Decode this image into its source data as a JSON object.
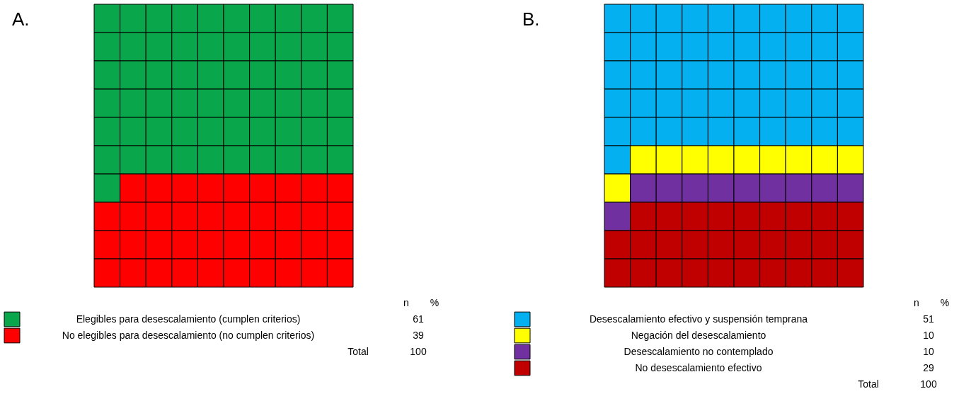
{
  "chart_data": [
    {
      "type": "other",
      "title": "A.",
      "categories": [
        "Elegibles para desescalamiento (cumplen criterios)",
        "No elegibles para desescalamiento (no cumplen criterios)"
      ],
      "values": [
        61,
        39
      ],
      "colors": [
        "#0aa64b",
        "#fe0000"
      ],
      "data_labels": true,
      "annotations": [
        "n",
        "%",
        "Total",
        "100"
      ]
    },
    {
      "type": "other",
      "title": "B.",
      "categories": [
        "Desescalamiento efectivo y suspensión temprana",
        "Negación del desescalamiento",
        "Desescalamiento no contemplado",
        "No desescalamiento efectivo"
      ],
      "values": [
        51,
        10,
        10,
        29
      ],
      "colors": [
        "#04b0ef",
        "#ffff00",
        "#7030a0",
        "#c00000"
      ],
      "data_labels": true,
      "annotations": [
        "n",
        "%",
        "Total",
        "100"
      ]
    }
  ]
}
